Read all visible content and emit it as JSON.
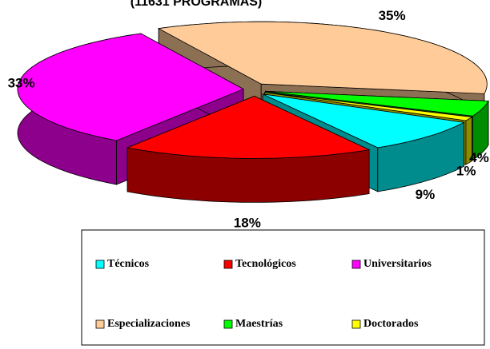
{
  "chart_data": {
    "type": "pie3d",
    "title": "(11631 PROGRAMAS)",
    "categories": [
      "Técnicos",
      "Tecnológicos",
      "Universitarios",
      "Especializaciones",
      "Maestrías",
      "Doctorados"
    ],
    "values": [
      9,
      18,
      33,
      35,
      4,
      1
    ],
    "value_labels": [
      "9%",
      "18%",
      "33%",
      "35%",
      "4%",
      "1%"
    ],
    "colors": [
      "#00ffff",
      "#ff0000",
      "#ff00ff",
      "#ffcc99",
      "#00ff00",
      "#ffff00"
    ],
    "legend": "bottom"
  }
}
